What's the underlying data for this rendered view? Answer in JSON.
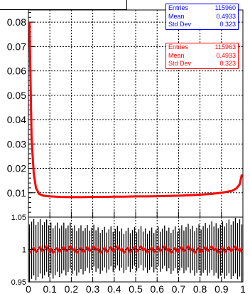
{
  "stats_blue": {
    "entries_label": "Entries",
    "entries": "115960",
    "mean_label": "Mean",
    "mean": "0.4933",
    "std_label": "Std Dev",
    "std": "0.323"
  },
  "stats_red": {
    "entries_label": "Entries",
    "entries": "115963",
    "mean_label": "Mean",
    "mean": "0.4933",
    "std_label": "Std Dev",
    "std": "0.323"
  },
  "colors": {
    "hist_red": "#ff0000",
    "hist_blue": "#0000ff",
    "ratio_err": "#000000",
    "ratio_pts": "#ff0000"
  },
  "chart_data": [
    {
      "type": "line",
      "title": "",
      "xlabel": "",
      "ylabel": "",
      "xlim": [
        0,
        1
      ],
      "ylim": [
        0,
        0.085
      ],
      "grid": true,
      "xticks": [
        0,
        0.1,
        0.2,
        0.3,
        0.4,
        0.5,
        0.6,
        0.7,
        0.8,
        0.9,
        1
      ],
      "yticks": [
        0.01,
        0.02,
        0.03,
        0.04,
        0.05,
        0.06,
        0.07,
        0.08
      ],
      "ytick_labels": [
        "0.01",
        "0.02",
        "0.03",
        "0.04",
        "0.05",
        "0.06",
        "0.07",
        "0.08"
      ],
      "x": [
        0.005,
        0.015,
        0.025,
        0.035,
        0.05,
        0.07,
        0.1,
        0.15,
        0.2,
        0.25,
        0.3,
        0.35,
        0.4,
        0.45,
        0.5,
        0.55,
        0.6,
        0.65,
        0.7,
        0.75,
        0.8,
        0.85,
        0.9,
        0.95,
        0.97,
        0.985,
        0.995
      ],
      "series": [
        {
          "values": [
            0.08,
            0.032,
            0.018,
            0.012,
            0.0095,
            0.0088,
            0.0085,
            0.0083,
            0.0082,
            0.0082,
            0.0083,
            0.0083,
            0.0084,
            0.0084,
            0.0085,
            0.0085,
            0.0086,
            0.0087,
            0.0088,
            0.009,
            0.0092,
            0.0095,
            0.01,
            0.0108,
            0.0118,
            0.0135,
            0.0175
          ]
        },
        {
          "values": [
            0.08,
            0.032,
            0.018,
            0.012,
            0.0095,
            0.0088,
            0.0085,
            0.0083,
            0.0082,
            0.0082,
            0.0083,
            0.0083,
            0.0084,
            0.0084,
            0.0085,
            0.0085,
            0.0086,
            0.0087,
            0.0088,
            0.009,
            0.0092,
            0.0095,
            0.01,
            0.0108,
            0.0118,
            0.0135,
            0.0175
          ]
        }
      ]
    },
    {
      "type": "scatter",
      "title": "",
      "xlabel": "",
      "ylabel": "",
      "xlim": [
        0,
        1
      ],
      "ylim": [
        0.95,
        1.05
      ],
      "grid": true,
      "xticks": [
        0,
        0.1,
        0.2,
        0.3,
        0.4,
        0.5,
        0.6,
        0.7,
        0.8,
        0.9,
        1
      ],
      "xtick_labels": [
        "0",
        "0.1",
        "0.2",
        "0.3",
        "0.4",
        "0.5",
        "0.6",
        "0.7",
        "0.8",
        "0.9",
        "1"
      ],
      "yticks": [
        0.95,
        1,
        1.05
      ],
      "ytick_labels": [
        "0.95",
        "1",
        "1.05"
      ],
      "bins": 100,
      "ratio": 1.0,
      "ratio_error": 0.03,
      "ratio_error_edges": 0.045
    }
  ]
}
